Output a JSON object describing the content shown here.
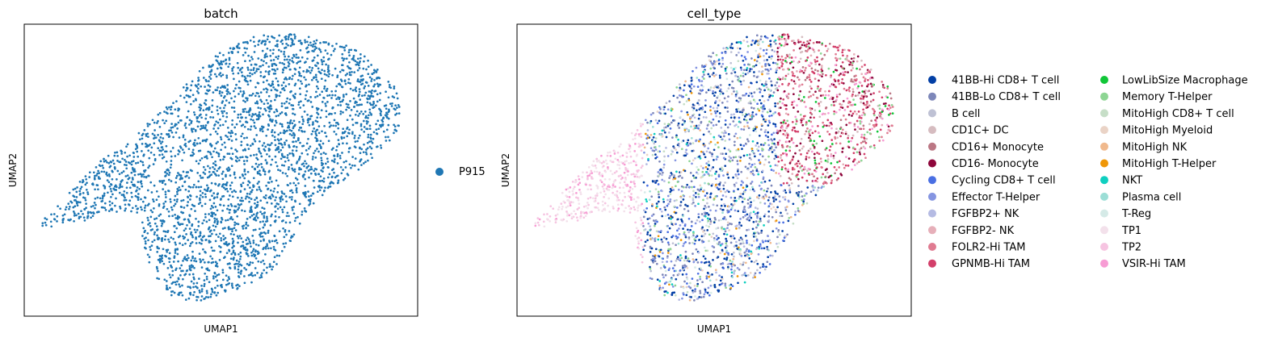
{
  "chart_data": [
    {
      "type": "scatter",
      "title": "batch",
      "xlabel": "UMAP1",
      "ylabel": "UMAP2",
      "grid": false,
      "ticks": "none",
      "legend": {
        "placement": "right",
        "entries": [
          {
            "label": "P915",
            "color": "#1f77b4"
          }
        ]
      },
      "series": [
        {
          "name": "P915",
          "color": "#1f77b4",
          "density": "dense"
        }
      ]
    },
    {
      "type": "scatter",
      "title": "cell_type",
      "xlabel": "UMAP1",
      "ylabel": "UMAP2",
      "grid": false,
      "ticks": "none",
      "legend": {
        "placement": "right",
        "columns": 2,
        "entries": [
          {
            "label": "41BB-Hi CD8+ T cell",
            "color": "#023fa5"
          },
          {
            "label": "41BB-Lo CD8+ T cell",
            "color": "#7d87b9"
          },
          {
            "label": "B cell",
            "color": "#bec1d4"
          },
          {
            "label": "CD1C+ DC",
            "color": "#d6bcc0"
          },
          {
            "label": "CD16+ Monocyte",
            "color": "#bb7784"
          },
          {
            "label": "CD16- Monocyte",
            "color": "#8e063b"
          },
          {
            "label": "Cycling CD8+ T cell",
            "color": "#4a6fe3"
          },
          {
            "label": "Effector T-Helper",
            "color": "#8595e1"
          },
          {
            "label": "FGFBP2+ NK",
            "color": "#b5bbe3"
          },
          {
            "label": "FGFBP2- NK",
            "color": "#e6afb9"
          },
          {
            "label": "FOLR2-Hi TAM",
            "color": "#e07b91"
          },
          {
            "label": "GPNMB-Hi TAM",
            "color": "#d33f6a"
          },
          {
            "label": "LowLibSize Macrophage",
            "color": "#11c638"
          },
          {
            "label": "Memory T-Helper",
            "color": "#8dd593"
          },
          {
            "label": "MitoHigh CD8+ T cell",
            "color": "#c6dec7"
          },
          {
            "label": "MitoHigh Myeloid",
            "color": "#ead3c6"
          },
          {
            "label": "MitoHigh NK",
            "color": "#f0b98d"
          },
          {
            "label": "MitoHigh T-Helper",
            "color": "#ef9708"
          },
          {
            "label": "NKT",
            "color": "#0fcfc0"
          },
          {
            "label": "Plasma cell",
            "color": "#9cded6"
          },
          {
            "label": "T-Reg",
            "color": "#d5eae7"
          },
          {
            "label": "TP1",
            "color": "#f3e1eb"
          },
          {
            "label": "TP2",
            "color": "#f6c4e1"
          },
          {
            "label": "VSIR-Hi TAM",
            "color": "#f79cd4"
          }
        ]
      }
    }
  ]
}
